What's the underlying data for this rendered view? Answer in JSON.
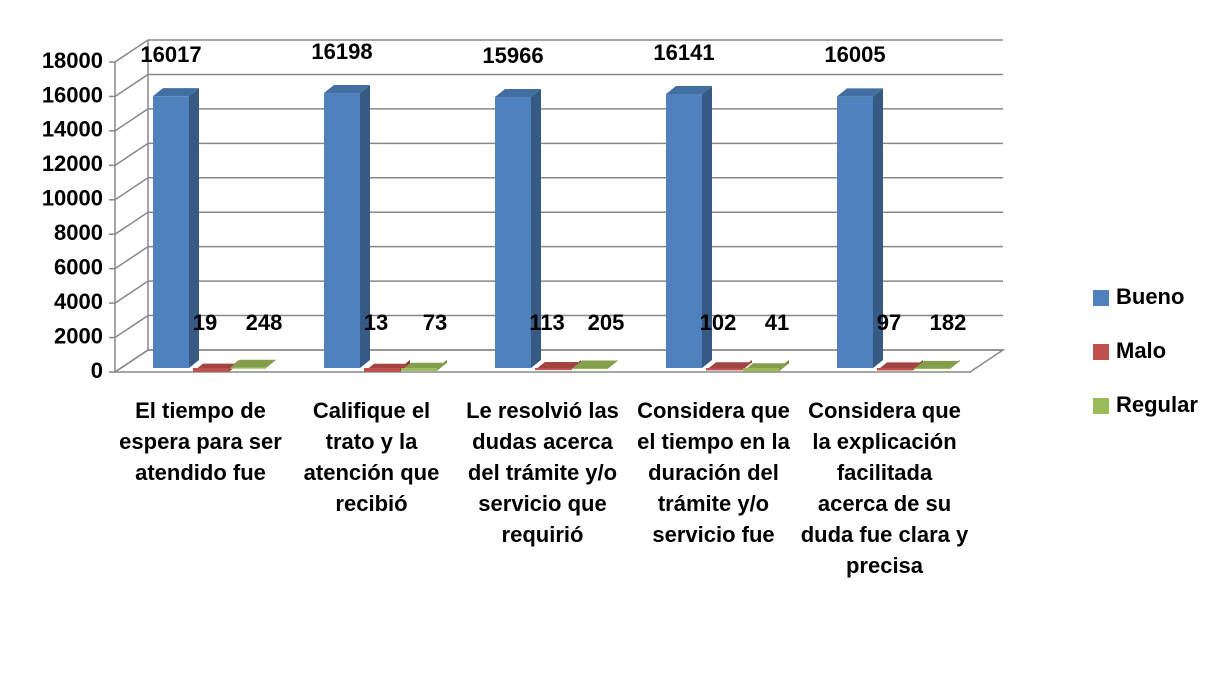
{
  "chart_data": {
    "type": "bar",
    "categories": [
      "El tiempo de espera para ser atendido fue",
      "Califique el trato y la atención que recibió",
      "Le resolvió las dudas acerca del trámite y/o servicio que requirió",
      "Considera que el tiempo en la duración del trámite y/o servicio fue",
      "Considera que la explicación facilitada acerca de su duda fue clara y precisa"
    ],
    "series": [
      {
        "name": "Bueno",
        "color": "#4f81bd",
        "values": [
          16017,
          16198,
          15966,
          16141,
          16005
        ]
      },
      {
        "name": "Malo",
        "color": "#c0504d",
        "values": [
          19,
          13,
          113,
          102,
          97
        ]
      },
      {
        "name": "Regular",
        "color": "#9bbb59",
        "values": [
          248,
          73,
          205,
          41,
          182
        ]
      }
    ],
    "ylim": [
      0,
      18000
    ],
    "yticks": [
      0,
      2000,
      4000,
      6000,
      8000,
      10000,
      12000,
      14000,
      16000,
      18000
    ],
    "grid": true,
    "legend": "right"
  }
}
